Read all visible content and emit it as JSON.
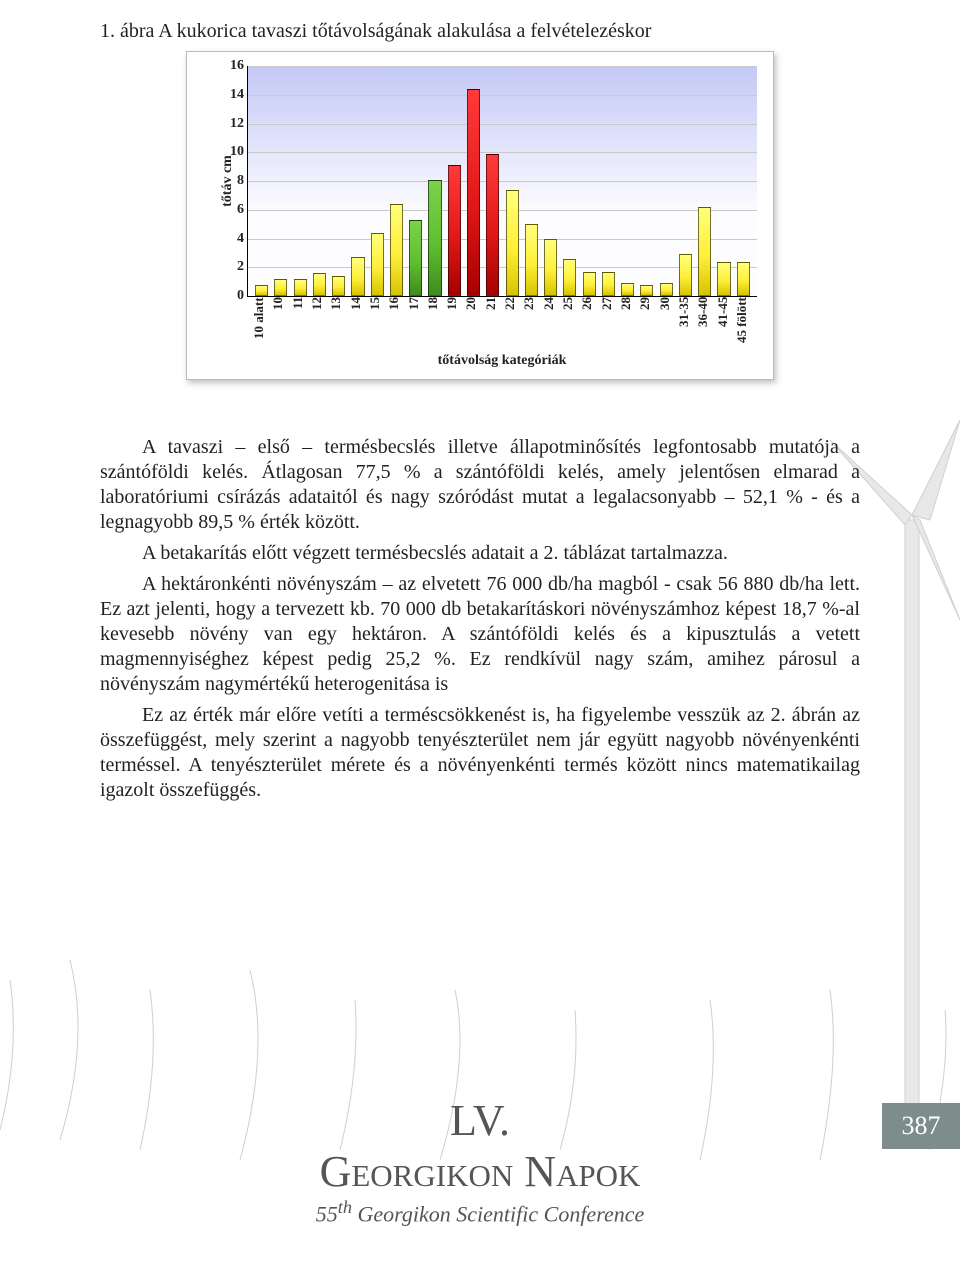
{
  "caption": "1. ábra A kukorica tavaszi tőtávolságának alakulása a felvételezéskor",
  "chart": {
    "type": "bar",
    "y_axis_title": "tőtáv cm",
    "x_axis_title": "tőtávolság kategóriák",
    "ymin": 0,
    "ymax": 16,
    "ytick_step": 2,
    "plot_bg_gradient_top": "#c3c8f5",
    "plot_bg_gradient_bottom": "#fdfdff",
    "grid_color": "#c9c9c9",
    "border_color": "#000000",
    "card_shadow": "2px 3px 6px rgba(0,0,0,.25)",
    "bar_width_ratio": 0.68,
    "bar_border_color": "rgba(0,0,0,.55)",
    "font_family": "Garamond / serif",
    "axis_label_fontsize_pt": 10,
    "palette": {
      "yellow": {
        "top": "#ffff7a",
        "mid": "#ffef3a",
        "bot": "#d7c400"
      },
      "green": {
        "top": "#7bd24b",
        "mid": "#5fbf2f",
        "bot": "#3f8c1f"
      },
      "red": {
        "top": "#ff3a3a",
        "mid": "#e21818",
        "bot": "#a60000"
      }
    },
    "categories": [
      "10 alatt",
      "10",
      "11",
      "12",
      "13",
      "14",
      "15",
      "16",
      "17",
      "18",
      "19",
      "20",
      "21",
      "22",
      "23",
      "24",
      "25",
      "26",
      "27",
      "28",
      "29",
      "30",
      "31-35",
      "36-40",
      "41-45",
      "45 fölött"
    ],
    "values": [
      0.8,
      1.2,
      1.2,
      1.6,
      1.4,
      2.7,
      4.4,
      6.4,
      5.3,
      8.1,
      9.1,
      14.4,
      9.9,
      7.4,
      5.0,
      4.0,
      2.6,
      1.7,
      1.7,
      0.9,
      0.8,
      0.9,
      2.9,
      6.2,
      2.4,
      2.4
    ],
    "colors": [
      "yellow",
      "yellow",
      "yellow",
      "yellow",
      "yellow",
      "yellow",
      "yellow",
      "yellow",
      "green",
      "green",
      "red",
      "red",
      "red",
      "yellow",
      "yellow",
      "yellow",
      "yellow",
      "yellow",
      "yellow",
      "yellow",
      "yellow",
      "yellow",
      "yellow",
      "yellow",
      "yellow",
      "yellow"
    ]
  },
  "paragraphs": {
    "p1": "A tavaszi – első – termésbecslés illetve állapotminősítés legfontosabb mutatója a szántóföldi kelés. Átlagosan 77,5 % a szántóföldi kelés, amely jelentősen elmarad a laboratóriumi csírázás adataitól és nagy szóródást mutat a legalacsonyabb – 52,1 % - és a legnagyobb 89,5 % érték között.",
    "p2": "A betakarítás előtt végzett termésbecslés adatait a 2. táblázat tartalmazza.",
    "p3": "A hektáronkénti növényszám – az elvetett 76 000 db/ha magból - csak 56 880 db/ha lett. Ez azt jelenti, hogy a tervezett kb. 70 000 db betakarításkori növényszámhoz képest 18,7 %-al kevesebb növény van egy hektáron. A szántóföldi kelés és a kipusztulás a vetett magmennyiséghez képest pedig 25,2 %. Ez rendkívül nagy szám, amihez párosul a növényszám nagymértékű heterogenitása is",
    "p4": "Ez az érték már előre vetíti a terméscsökkenést is, ha figyelembe vesszük az 2. ábrán az összefüggést, mely szerint a nagyobb tenyészterület nem jár együtt nagyobb növényenkénti terméssel. A tenyészterület mérete és a növényenkénti termés között nincs matematikailag igazolt összefüggés."
  },
  "footer": {
    "title1": "LV.",
    "title2": "Georgikon Napok",
    "subtitle_prefix": "55",
    "subtitle_sup": "th",
    "subtitle_rest": " Georgikon Scientific Conference",
    "page_num": "387",
    "text_color": "#555555",
    "badge_bg": "#7e8c8c",
    "badge_fg": "#ffffff"
  }
}
